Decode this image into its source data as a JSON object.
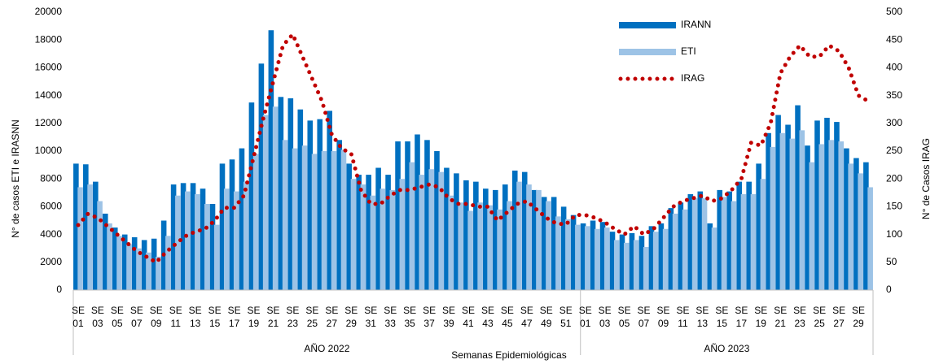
{
  "chart_data": {
    "type": "bar-line",
    "x_label": "Semanas Epidemiológicas",
    "y_label": "N° de casos ETI e IRASNN",
    "y2_label": "N° de Casos IRAG",
    "categories": [
      "SE 01",
      null,
      "SE 03",
      null,
      "SE 05",
      null,
      "SE 07",
      null,
      "SE 09",
      null,
      "SE 11",
      null,
      "SE 13",
      null,
      "SE 15",
      null,
      "SE 17",
      null,
      "SE 19",
      null,
      "SE 21",
      null,
      "SE 23",
      null,
      "SE 25",
      null,
      "SE 27",
      null,
      "SE 29",
      null,
      "SE 31",
      null,
      "SE 33",
      null,
      "SE 35",
      null,
      "SE 37",
      null,
      "SE 39",
      null,
      "SE 41",
      null,
      "SE 43",
      null,
      "SE 45",
      null,
      "SE 47",
      null,
      "SE 49",
      null,
      "SE 51",
      null,
      "SE 01",
      null,
      "SE 03",
      null,
      "SE 05",
      null,
      "SE 07",
      null,
      "SE 09",
      null,
      "SE 11",
      null,
      "SE 13",
      null,
      "SE 15",
      null,
      "SE 17",
      null,
      "SE 19",
      null,
      "SE 21",
      null,
      "SE 23",
      null,
      "SE 25",
      null,
      "SE 27",
      null,
      "SE 29",
      null
    ],
    "groups": [
      "AÑO 2022",
      "AÑO 2023"
    ],
    "series": [
      {
        "name": "IRANN",
        "type": "bar",
        "color": "#0070c0",
        "values": [
          9100,
          9050,
          7800,
          5500,
          4500,
          4000,
          3800,
          3600,
          3700,
          5000,
          7600,
          7700,
          7700,
          7300,
          6200,
          9100,
          9400,
          10200,
          13500,
          16300,
          18700,
          13900,
          13800,
          13000,
          12200,
          12300,
          12900,
          10800,
          9100,
          8300,
          8300,
          8800,
          8300,
          10700,
          10700,
          11200,
          10800,
          10000,
          8800,
          8400,
          7900,
          7800,
          7300,
          7200,
          7600,
          8600,
          8500,
          7200,
          6700,
          6700,
          6000,
          5400,
          4800,
          5000,
          4900,
          4200,
          4000,
          4100,
          3900,
          4600,
          4800,
          5900,
          6300,
          6900,
          7100,
          4800,
          7200,
          7100,
          7800,
          7800,
          9100,
          11300,
          12600,
          11900,
          13300,
          10400,
          12200,
          12400,
          12100,
          10200,
          9500,
          9200
        ]
      },
      {
        "name": "ETI",
        "type": "bar",
        "color": "#9dc3e6",
        "values": [
          7400,
          7600,
          6400,
          4800,
          3900,
          3300,
          3000,
          2700,
          2400,
          3900,
          6800,
          7100,
          6900,
          6200,
          4700,
          7300,
          7100,
          7800,
          9800,
          12600,
          13200,
          10800,
          10200,
          10400,
          9800,
          10000,
          10000,
          10100,
          8000,
          7600,
          6800,
          7300,
          7200,
          8000,
          9200,
          8300,
          8700,
          8500,
          6800,
          6300,
          5700,
          6300,
          6100,
          5800,
          6400,
          7800,
          7600,
          7200,
          6400,
          5300,
          5100,
          4700,
          4600,
          4400,
          4500,
          3600,
          3400,
          3600,
          3100,
          4200,
          4400,
          5500,
          5800,
          6600,
          6600,
          4500,
          6700,
          6400,
          6900,
          6900,
          8000,
          10300,
          11300,
          10900,
          11500,
          9200,
          10500,
          10800,
          10700,
          9100,
          8400,
          7400
        ]
      },
      {
        "name": "IRAG",
        "type": "line",
        "axis": "y2",
        "color": "#c00000",
        "values": [
          117,
          137,
          130,
          115,
          100,
          85,
          70,
          60,
          50,
          68,
          83,
          97,
          105,
          110,
          125,
          148,
          148,
          170,
          240,
          310,
          375,
          440,
          460,
          420,
          380,
          340,
          280,
          255,
          245,
          180,
          155,
          155,
          170,
          180,
          180,
          185,
          190,
          185,
          165,
          155,
          155,
          150,
          150,
          125,
          140,
          155,
          160,
          145,
          130,
          120,
          118,
          135,
          135,
          130,
          122,
          110,
          100,
          115,
          100,
          110,
          130,
          150,
          160,
          165,
          170,
          160,
          165,
          180,
          200,
          265,
          260,
          300,
          390,
          420,
          440,
          420,
          420,
          440,
          430,
          400,
          350,
          340
        ]
      }
    ],
    "ylim": [
      0,
      20000
    ],
    "yticks": [
      0,
      2000,
      4000,
      6000,
      8000,
      10000,
      12000,
      14000,
      16000,
      18000,
      20000
    ],
    "y2lim": [
      0,
      500
    ],
    "y2ticks": [
      0,
      50,
      100,
      150,
      200,
      250,
      300,
      350,
      400,
      450,
      500
    ]
  }
}
